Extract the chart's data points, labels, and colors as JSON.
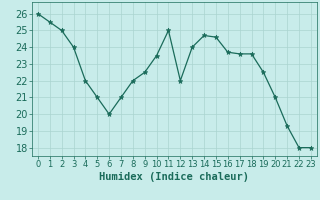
{
  "x": [
    0,
    1,
    2,
    3,
    4,
    5,
    6,
    7,
    8,
    9,
    10,
    11,
    12,
    13,
    14,
    15,
    16,
    17,
    18,
    19,
    20,
    21,
    22,
    23
  ],
  "y": [
    26,
    25.5,
    25,
    24,
    22,
    21,
    20,
    21,
    22,
    22.5,
    23.5,
    25,
    22,
    24,
    24.7,
    24.6,
    23.7,
    23.6,
    23.6,
    22.5,
    21,
    19.3,
    18,
    18
  ],
  "line_color": "#1a6b5a",
  "marker": "*",
  "bg_color": "#c8ecea",
  "grid_color": "#aad4d0",
  "xlabel": "Humidex (Indice chaleur)",
  "ylim": [
    17.5,
    26.7
  ],
  "xlim": [
    -0.5,
    23.5
  ],
  "yticks": [
    18,
    19,
    20,
    21,
    22,
    23,
    24,
    25,
    26
  ],
  "xticks": [
    0,
    1,
    2,
    3,
    4,
    5,
    6,
    7,
    8,
    9,
    10,
    11,
    12,
    13,
    14,
    15,
    16,
    17,
    18,
    19,
    20,
    21,
    22,
    23
  ],
  "title_color": "#1a6b5a",
  "tick_fontsize": 6,
  "xlabel_fontsize": 7.5
}
